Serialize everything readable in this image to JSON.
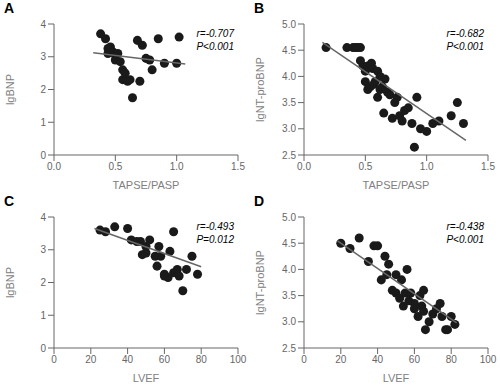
{
  "chart_data": [
    {
      "type": "scatter",
      "title": "A",
      "x_label": "TAPSE/PASP",
      "y_label": "lgBNP",
      "annotation": "r=-0.707\nP<0.001",
      "xlim": [
        0.0,
        1.5
      ],
      "ylim": [
        0.0,
        4.0
      ],
      "xticks": [
        {
          "value": 0.0,
          "label": "0.0"
        },
        0.5,
        {
          "value": 1.0,
          "label": "1.0"
        },
        1.5
      ],
      "yticks": [
        0,
        1,
        2,
        3,
        4
      ],
      "series": [
        {
          "type": "scatter",
          "color": "#1a1a1a",
          "x": [
            0.38,
            0.42,
            0.44,
            0.44,
            0.46,
            0.48,
            0.5,
            0.5,
            0.52,
            0.54,
            0.56,
            0.56,
            0.58,
            0.6,
            0.62,
            0.64,
            0.68,
            0.7,
            0.72,
            0.75,
            0.78,
            0.8,
            0.85,
            0.9,
            1.0,
            1.02
          ],
          "values": [
            3.7,
            3.55,
            3.25,
            3.1,
            3.3,
            3.15,
            3.05,
            2.9,
            3.1,
            2.85,
            2.3,
            2.6,
            2.5,
            2.25,
            2.3,
            1.75,
            3.5,
            2.25,
            3.35,
            2.95,
            2.9,
            2.6,
            3.55,
            2.8,
            2.8,
            3.6
          ]
        },
        {
          "type": "line",
          "color": "#666666",
          "x": [
            0.32,
            1.07
          ],
          "values": [
            3.12,
            2.78
          ]
        }
      ]
    },
    {
      "type": "scatter",
      "title": "B",
      "x_label": "TAPSE/PASP",
      "y_label": "lgNT-proBNP",
      "annotation": "r=-0.682\nP<0.001",
      "xlim": [
        0.0,
        1.5
      ],
      "ylim": [
        2.5,
        5.0
      ],
      "xticks": [
        {
          "value": 0.0,
          "label": "0.0"
        },
        0.5,
        {
          "value": 1.0,
          "label": "1.0"
        },
        1.5
      ],
      "yticks": [
        2.5,
        {
          "value": 3.0,
          "label": "3.0"
        },
        3.5,
        {
          "value": 4.0,
          "label": "4.0"
        },
        4.5,
        {
          "value": 5.0,
          "label": "5.0"
        }
      ],
      "series": [
        {
          "type": "scatter",
          "color": "#1a1a1a",
          "x": [
            0.18,
            0.35,
            0.4,
            0.42,
            0.44,
            0.46,
            0.46,
            0.48,
            0.5,
            0.5,
            0.52,
            0.52,
            0.54,
            0.55,
            0.56,
            0.57,
            0.58,
            0.6,
            0.6,
            0.62,
            0.62,
            0.64,
            0.65,
            0.66,
            0.68,
            0.7,
            0.72,
            0.74,
            0.76,
            0.78,
            0.8,
            0.82,
            0.85,
            0.88,
            0.9,
            0.92,
            0.95,
            1.0,
            1.05,
            1.1,
            1.2,
            1.25,
            1.3
          ],
          "values": [
            4.55,
            4.55,
            4.55,
            4.55,
            4.55,
            4.55,
            4.3,
            4.2,
            4.1,
            3.9,
            4.2,
            3.75,
            3.8,
            4.25,
            4.15,
            3.85,
            3.9,
            4.1,
            3.6,
            3.75,
            4.0,
            3.8,
            3.3,
            3.95,
            3.7,
            3.65,
            3.2,
            3.5,
            3.6,
            3.25,
            3.15,
            3.35,
            3.4,
            3.1,
            2.65,
            3.6,
            3.0,
            2.95,
            3.1,
            3.15,
            3.25,
            3.5,
            3.1
          ]
        },
        {
          "type": "line",
          "color": "#666666",
          "x": [
            0.15,
            1.32
          ],
          "values": [
            4.65,
            2.78
          ]
        }
      ]
    },
    {
      "type": "scatter",
      "title": "C",
      "x_label": "LVEF",
      "y_label": "lgBNP",
      "annotation": "r=-0.493\nP=0.012",
      "xlim": [
        0,
        100
      ],
      "ylim": [
        0.0,
        4.0
      ],
      "xticks": [
        0,
        20,
        40,
        60,
        80,
        100
      ],
      "yticks": [
        0,
        1,
        2,
        3,
        4
      ],
      "series": [
        {
          "type": "scatter",
          "color": "#1a1a1a",
          "x": [
            25,
            28,
            33,
            40,
            42,
            45,
            47,
            48,
            50,
            50,
            52,
            55,
            56,
            57,
            58,
            60,
            60,
            62,
            63,
            65,
            65,
            67,
            68,
            70,
            72,
            75,
            78
          ],
          "values": [
            3.6,
            3.55,
            3.7,
            3.65,
            3.3,
            3.25,
            3.25,
            2.85,
            2.9,
            3.1,
            3.3,
            2.8,
            2.5,
            3.1,
            2.8,
            2.25,
            2.2,
            2.15,
            2.95,
            3.55,
            2.3,
            2.4,
            2.2,
            1.75,
            2.4,
            2.8,
            2.25
          ]
        },
        {
          "type": "line",
          "color": "#666666",
          "x": [
            22,
            80
          ],
          "values": [
            3.65,
            2.48
          ]
        }
      ]
    },
    {
      "type": "scatter",
      "title": "D",
      "x_label": "LVEF",
      "y_label": "lgNT-proBNP",
      "annotation": "r=-0.438\nP<0.001",
      "xlim": [
        0,
        100
      ],
      "ylim": [
        2.5,
        5.0
      ],
      "xticks": [
        0,
        20,
        40,
        60,
        80,
        100
      ],
      "yticks": [
        2.5,
        {
          "value": 3.0,
          "label": "3.0"
        },
        3.5,
        {
          "value": 4.0,
          "label": "4.0"
        },
        4.5,
        {
          "value": 5.0,
          "label": "5.0"
        }
      ],
      "series": [
        {
          "type": "scatter",
          "color": "#1a1a1a",
          "x": [
            20,
            25,
            30,
            35,
            38,
            40,
            42,
            44,
            45,
            46,
            48,
            50,
            50,
            52,
            53,
            54,
            55,
            56,
            57,
            58,
            60,
            60,
            62,
            63,
            64,
            65,
            65,
            66,
            68,
            70,
            72,
            74,
            75,
            77,
            78,
            80,
            82
          ],
          "values": [
            4.5,
            4.4,
            4.6,
            4.15,
            4.45,
            4.45,
            3.8,
            4.25,
            3.9,
            4.1,
            3.6,
            3.9,
            3.55,
            3.45,
            3.8,
            3.3,
            3.55,
            4.0,
            3.4,
            3.55,
            3.25,
            3.35,
            3.1,
            3.5,
            3.3,
            3.6,
            3.2,
            2.85,
            3.0,
            3.15,
            3.25,
            3.35,
            3.1,
            2.85,
            2.85,
            3.1,
            2.95
          ]
        },
        {
          "type": "line",
          "color": "#666666",
          "x": [
            18,
            83
          ],
          "values": [
            4.55,
            2.98
          ]
        }
      ]
    }
  ]
}
